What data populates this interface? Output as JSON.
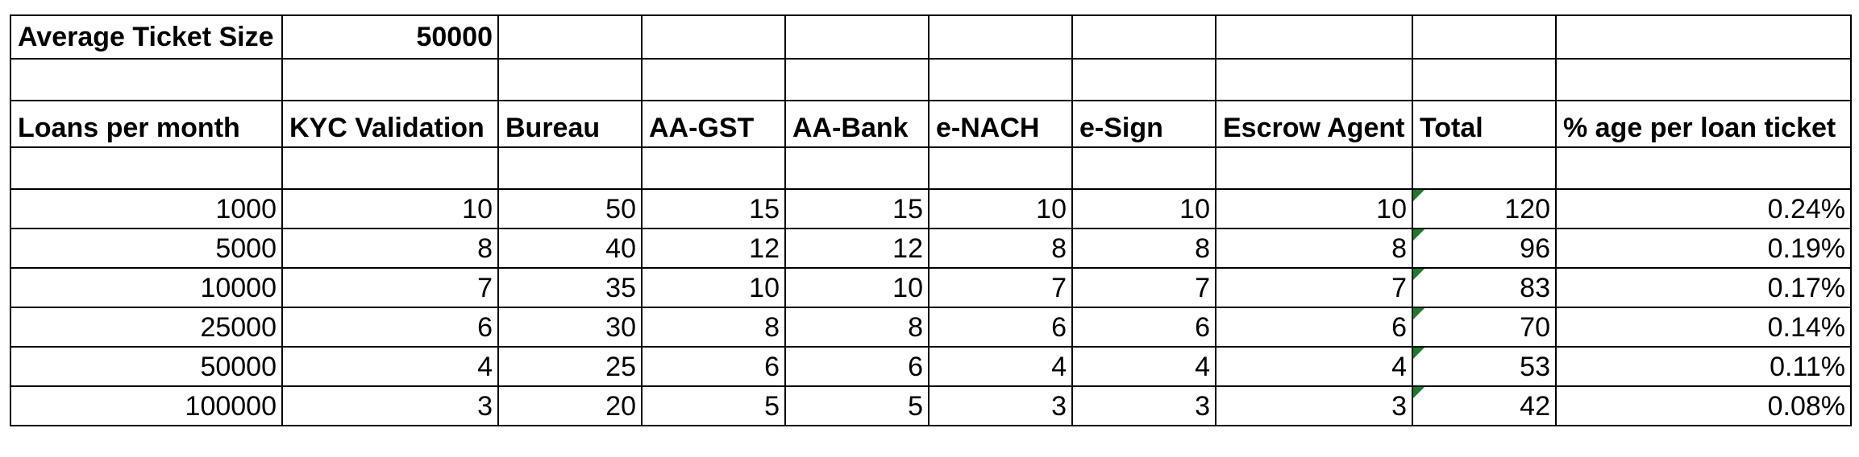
{
  "top": {
    "label": "Average Ticket Size",
    "value": "50000"
  },
  "columns": [
    "Loans per month",
    "KYC Validation",
    "Bureau",
    "AA-GST",
    "AA-Bank",
    "e-NACH",
    "e-Sign",
    "Escrow Agent",
    "Total",
    "% age per loan ticket"
  ],
  "rows": [
    [
      "1000",
      "10",
      "50",
      "15",
      "15",
      "10",
      "10",
      "10",
      "120",
      "0.24%"
    ],
    [
      "5000",
      "8",
      "40",
      "12",
      "12",
      "8",
      "8",
      "8",
      "96",
      "0.19%"
    ],
    [
      "10000",
      "7",
      "35",
      "10",
      "10",
      "7",
      "7",
      "7",
      "83",
      "0.17%"
    ],
    [
      "25000",
      "6",
      "30",
      "8",
      "8",
      "6",
      "6",
      "6",
      "70",
      "0.14%"
    ],
    [
      "50000",
      "4",
      "25",
      "6",
      "6",
      "4",
      "4",
      "4",
      "53",
      "0.11%"
    ],
    [
      "100000",
      "3",
      "20",
      "5",
      "5",
      "3",
      "3",
      "3",
      "42",
      "0.08%"
    ]
  ],
  "flag_color": "#1e7a2e"
}
